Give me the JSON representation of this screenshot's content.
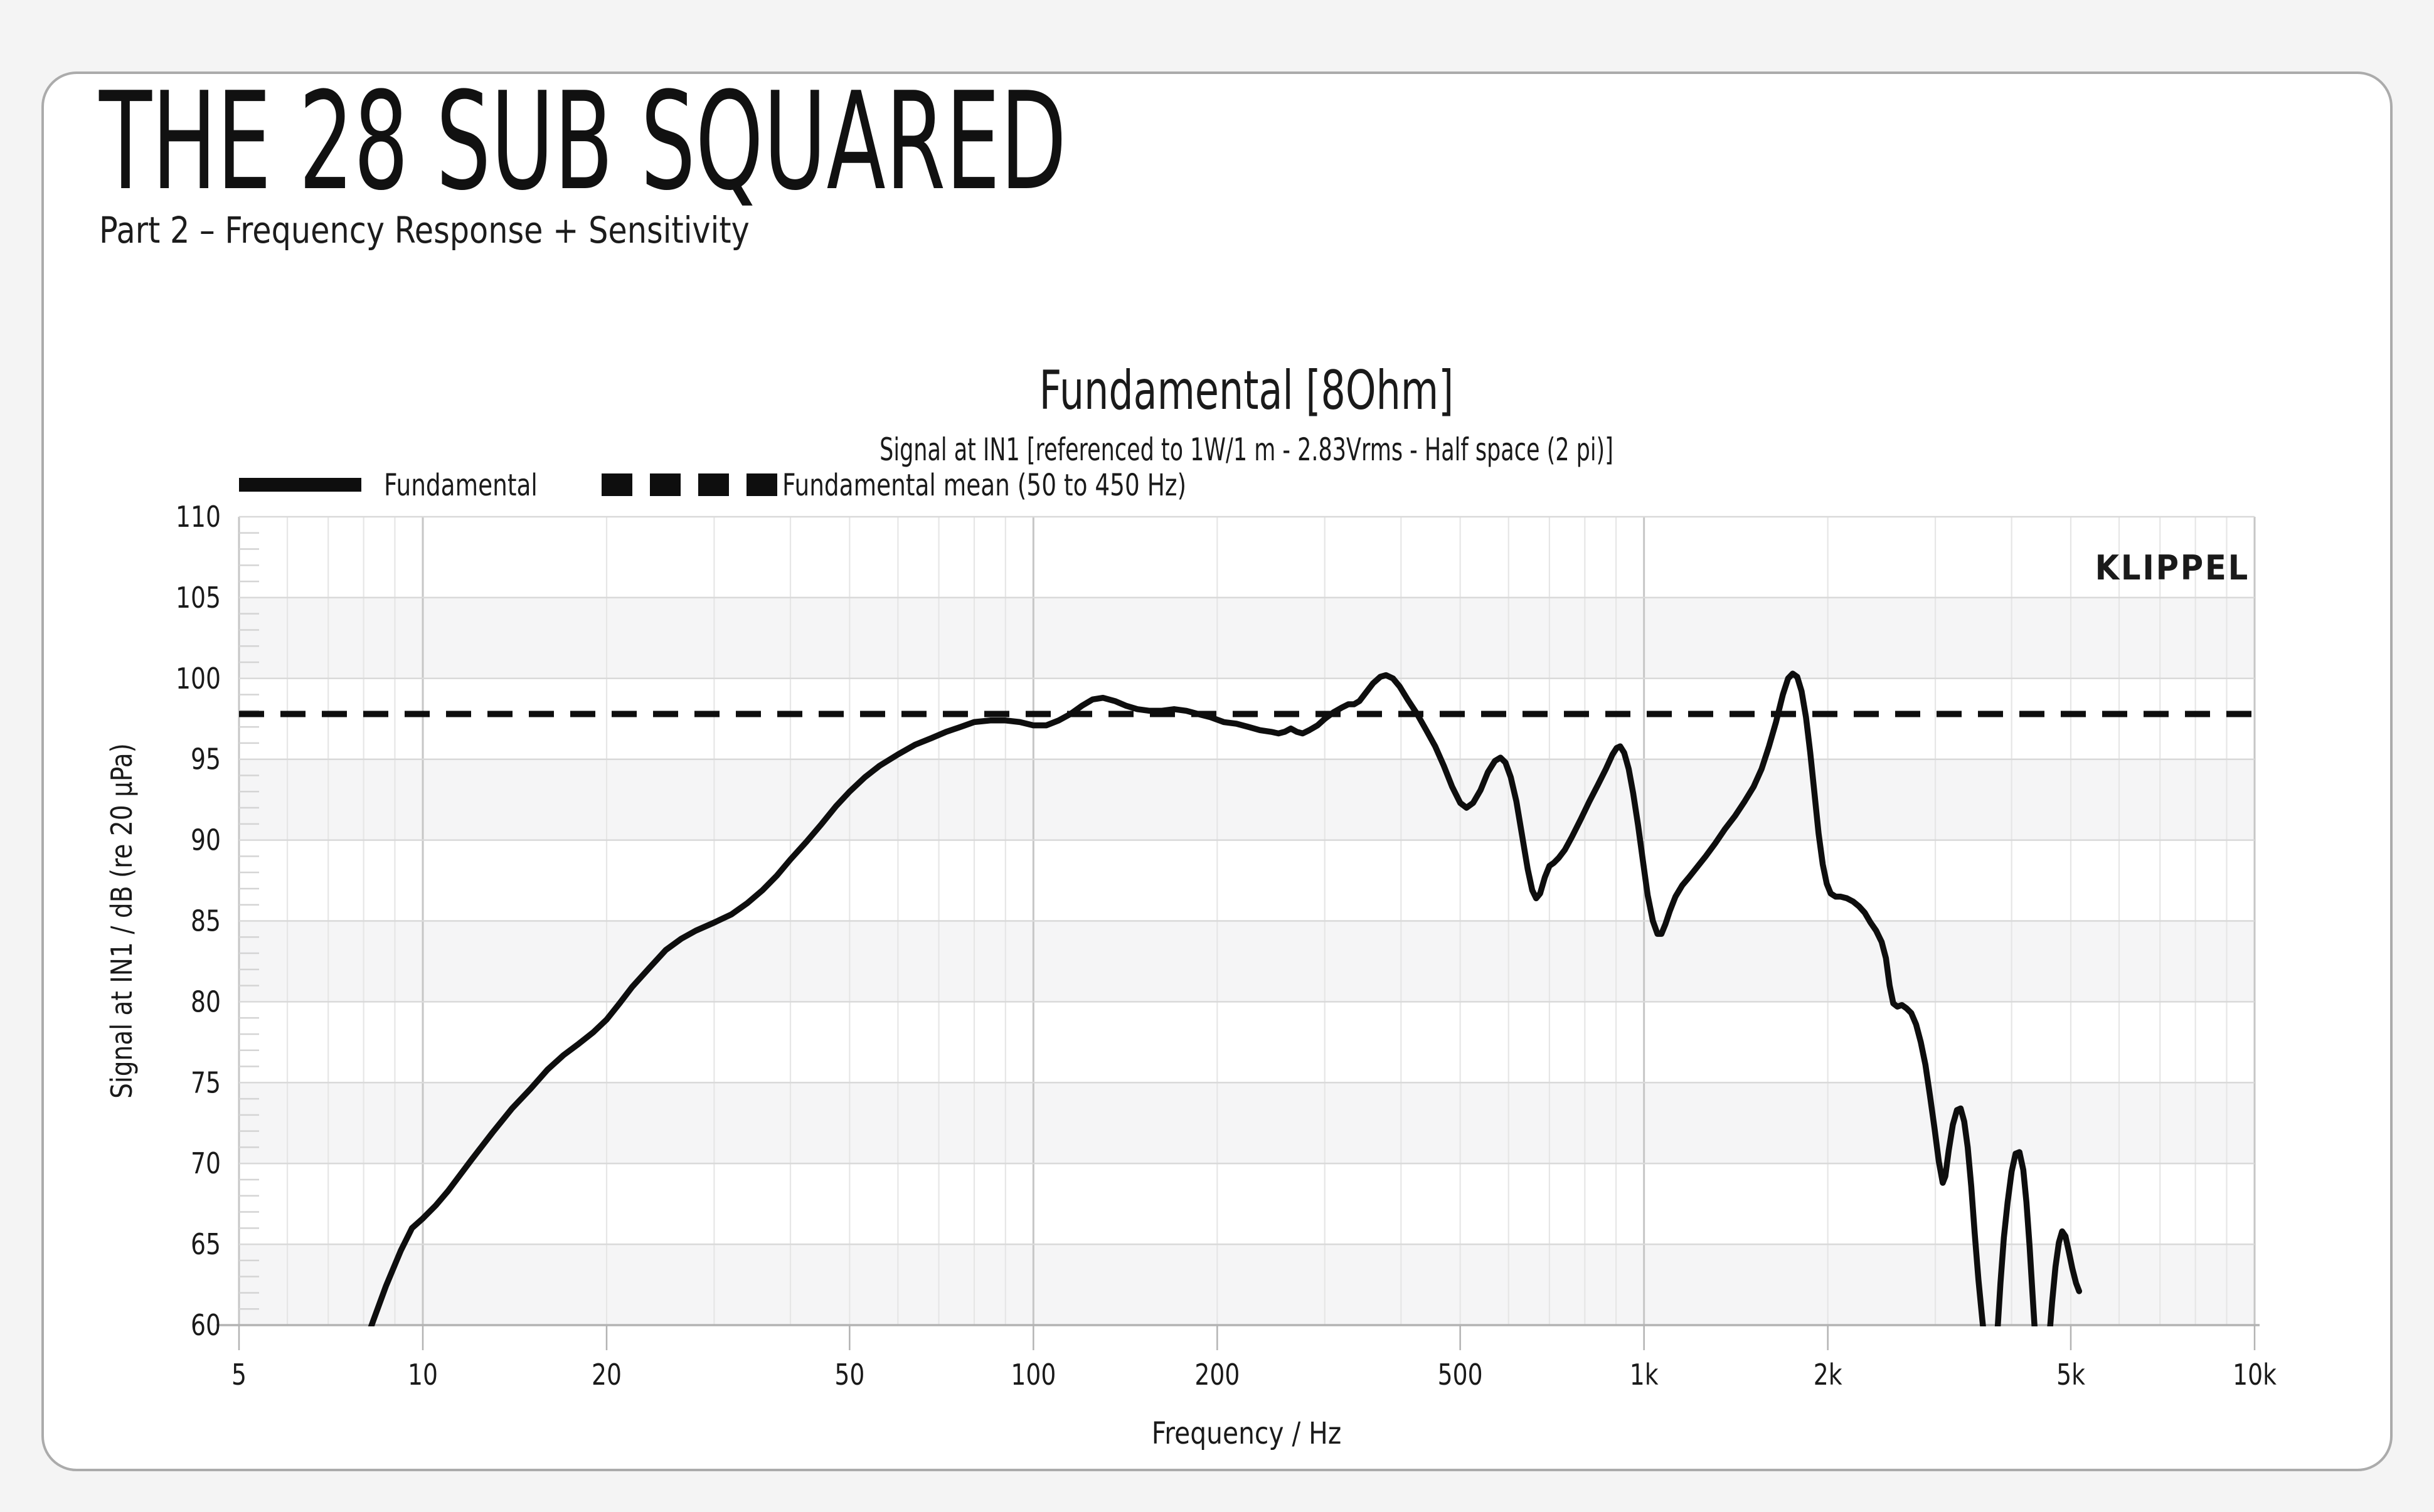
{
  "page": {
    "title": "THE 28 SUB SQUARED",
    "subtitle": "Part 2 – Frequency Response + Sensitivity"
  },
  "chart": {
    "title": "Fundamental [8Ohm]",
    "subtitle": "Signal at IN1 [referenced to 1W/1 m - 2.83Vrms - Half space (2 pi)]",
    "watermark": "KLIPPEL",
    "legend": [
      {
        "label": "Fundamental",
        "style": "solid"
      },
      {
        "label": "Fundamental mean (50 to 450 Hz)",
        "style": "dashed"
      }
    ],
    "colors": {
      "watermark": "#3A7CA8",
      "curve": "#0e0e0e",
      "mean_line": "#0e0e0e",
      "grid_major": "#d9d9d9",
      "grid_minor": "#e6e6e6",
      "grid_decade": "#c6c6c6",
      "band": "#f5f5f6",
      "axis": "#b3b3b3",
      "text": "#1a1a1a"
    }
  },
  "chart_data": {
    "type": "line",
    "title": "Fundamental [8Ohm]",
    "subtitle": "Signal at IN1 [referenced to 1W/1 m - 2.83Vrms - Half space (2 pi)]",
    "xlabel": "Frequency / Hz",
    "ylabel": "Signal at IN1 / dB (re 20 µPa)",
    "x_scale": "log",
    "xlim": [
      5,
      10000
    ],
    "ylim": [
      60,
      110
    ],
    "x_ticks": [
      {
        "v": 5,
        "label": "5"
      },
      {
        "v": 10,
        "label": "10"
      },
      {
        "v": 20,
        "label": "20"
      },
      {
        "v": 50,
        "label": "50"
      },
      {
        "v": 100,
        "label": "100"
      },
      {
        "v": 200,
        "label": "200"
      },
      {
        "v": 500,
        "label": "500"
      },
      {
        "v": 1000,
        "label": "1k"
      },
      {
        "v": 2000,
        "label": "2k"
      },
      {
        "v": 5000,
        "label": "5k"
      },
      {
        "v": 10000,
        "label": "10k"
      }
    ],
    "y_ticks": [
      60,
      65,
      70,
      75,
      80,
      85,
      90,
      95,
      100,
      105,
      110
    ],
    "grid": true,
    "legend_position": "top-left",
    "series": [
      {
        "name": "Fundamental",
        "style": "solid",
        "points": [
          [
            8.0,
            58.6
          ],
          [
            8.3,
            60.3
          ],
          [
            8.7,
            62.4
          ],
          [
            9.2,
            64.6
          ],
          [
            9.6,
            66.0
          ],
          [
            10.0,
            66.6
          ],
          [
            10.5,
            67.4
          ],
          [
            11,
            68.3
          ],
          [
            12,
            70.2
          ],
          [
            13,
            71.9
          ],
          [
            14,
            73.4
          ],
          [
            15,
            74.6
          ],
          [
            16,
            75.8
          ],
          [
            17,
            76.7
          ],
          [
            18,
            77.4
          ],
          [
            19,
            78.1
          ],
          [
            20,
            78.9
          ],
          [
            21,
            79.9
          ],
          [
            22,
            80.9
          ],
          [
            23.5,
            82.1
          ],
          [
            25,
            83.2
          ],
          [
            26.5,
            83.9
          ],
          [
            28,
            84.4
          ],
          [
            30,
            84.9
          ],
          [
            32,
            85.4
          ],
          [
            34,
            86.1
          ],
          [
            36,
            86.9
          ],
          [
            38,
            87.8
          ],
          [
            40,
            88.8
          ],
          [
            42.5,
            89.9
          ],
          [
            45,
            91.0
          ],
          [
            47.5,
            92.1
          ],
          [
            50,
            93.0
          ],
          [
            53,
            93.9
          ],
          [
            56,
            94.6
          ],
          [
            60,
            95.3
          ],
          [
            64,
            95.9
          ],
          [
            68,
            96.3
          ],
          [
            72,
            96.7
          ],
          [
            76,
            97.0
          ],
          [
            80,
            97.3
          ],
          [
            85,
            97.4
          ],
          [
            90,
            97.4
          ],
          [
            95,
            97.3
          ],
          [
            100,
            97.1
          ],
          [
            105,
            97.1
          ],
          [
            110,
            97.4
          ],
          [
            115,
            97.8
          ],
          [
            120,
            98.3
          ],
          [
            125,
            98.7
          ],
          [
            130,
            98.8
          ],
          [
            136,
            98.6
          ],
          [
            142,
            98.3
          ],
          [
            148,
            98.1
          ],
          [
            155,
            98.0
          ],
          [
            162,
            98.0
          ],
          [
            170,
            98.1
          ],
          [
            178,
            98.0
          ],
          [
            186,
            97.8
          ],
          [
            195,
            97.6
          ],
          [
            205,
            97.3
          ],
          [
            215,
            97.2
          ],
          [
            225,
            97.0
          ],
          [
            235,
            96.8
          ],
          [
            245,
            96.7
          ],
          [
            252,
            96.6
          ],
          [
            258,
            96.7
          ],
          [
            264,
            96.9
          ],
          [
            270,
            96.7
          ],
          [
            276,
            96.6
          ],
          [
            283,
            96.8
          ],
          [
            292,
            97.1
          ],
          [
            300,
            97.5
          ],
          [
            310,
            97.9
          ],
          [
            320,
            98.2
          ],
          [
            328,
            98.4
          ],
          [
            335,
            98.4
          ],
          [
            342,
            98.6
          ],
          [
            350,
            99.1
          ],
          [
            360,
            99.7
          ],
          [
            370,
            100.1
          ],
          [
            378,
            100.2
          ],
          [
            388,
            100.0
          ],
          [
            398,
            99.5
          ],
          [
            410,
            98.7
          ],
          [
            425,
            97.8
          ],
          [
            440,
            96.8
          ],
          [
            455,
            95.8
          ],
          [
            470,
            94.6
          ],
          [
            485,
            93.3
          ],
          [
            500,
            92.3
          ],
          [
            512,
            92.0
          ],
          [
            525,
            92.3
          ],
          [
            540,
            93.1
          ],
          [
            555,
            94.2
          ],
          [
            570,
            94.9
          ],
          [
            582,
            95.1
          ],
          [
            593,
            94.8
          ],
          [
            605,
            93.9
          ],
          [
            618,
            92.4
          ],
          [
            632,
            90.2
          ],
          [
            645,
            88.2
          ],
          [
            656,
            86.9
          ],
          [
            666,
            86.4
          ],
          [
            676,
            86.7
          ],
          [
            688,
            87.7
          ],
          [
            700,
            88.4
          ],
          [
            712,
            88.6
          ],
          [
            725,
            88.9
          ],
          [
            742,
            89.4
          ],
          [
            762,
            90.2
          ],
          [
            788,
            91.3
          ],
          [
            814,
            92.4
          ],
          [
            840,
            93.4
          ],
          [
            866,
            94.4
          ],
          [
            888,
            95.3
          ],
          [
            902,
            95.7
          ],
          [
            914,
            95.8
          ],
          [
            928,
            95.4
          ],
          [
            944,
            94.4
          ],
          [
            960,
            92.9
          ],
          [
            978,
            90.9
          ],
          [
            996,
            88.7
          ],
          [
            1014,
            86.6
          ],
          [
            1034,
            85.0
          ],
          [
            1052,
            84.2
          ],
          [
            1068,
            84.2
          ],
          [
            1084,
            84.8
          ],
          [
            1102,
            85.6
          ],
          [
            1126,
            86.5
          ],
          [
            1155,
            87.2
          ],
          [
            1185,
            87.7
          ],
          [
            1220,
            88.3
          ],
          [
            1262,
            89.0
          ],
          [
            1308,
            89.8
          ],
          [
            1358,
            90.7
          ],
          [
            1410,
            91.5
          ],
          [
            1462,
            92.4
          ],
          [
            1512,
            93.3
          ],
          [
            1558,
            94.4
          ],
          [
            1602,
            95.8
          ],
          [
            1645,
            97.3
          ],
          [
            1688,
            99.0
          ],
          [
            1722,
            100.0
          ],
          [
            1752,
            100.3
          ],
          [
            1782,
            100.1
          ],
          [
            1812,
            99.2
          ],
          [
            1842,
            97.6
          ],
          [
            1872,
            95.4
          ],
          [
            1902,
            92.9
          ],
          [
            1932,
            90.4
          ],
          [
            1962,
            88.5
          ],
          [
            1992,
            87.3
          ],
          [
            2022,
            86.7
          ],
          [
            2060,
            86.5
          ],
          [
            2100,
            86.5
          ],
          [
            2150,
            86.4
          ],
          [
            2200,
            86.2
          ],
          [
            2250,
            85.9
          ],
          [
            2300,
            85.5
          ],
          [
            2350,
            84.9
          ],
          [
            2400,
            84.4
          ],
          [
            2450,
            83.7
          ],
          [
            2490,
            82.7
          ],
          [
            2525,
            81.0
          ],
          [
            2560,
            79.9
          ],
          [
            2600,
            79.7
          ],
          [
            2645,
            79.8
          ],
          [
            2690,
            79.6
          ],
          [
            2740,
            79.3
          ],
          [
            2790,
            78.6
          ],
          [
            2840,
            77.5
          ],
          [
            2890,
            76.1
          ],
          [
            2940,
            74.2
          ],
          [
            2990,
            72.2
          ],
          [
            3040,
            70.1
          ],
          [
            3085,
            68.8
          ],
          [
            3115,
            69.2
          ],
          [
            3155,
            70.8
          ],
          [
            3205,
            72.4
          ],
          [
            3255,
            73.3
          ],
          [
            3300,
            73.4
          ],
          [
            3345,
            72.6
          ],
          [
            3390,
            71.0
          ],
          [
            3435,
            68.6
          ],
          [
            3480,
            65.7
          ],
          [
            3530,
            62.8
          ],
          [
            3580,
            60.4
          ],
          [
            3630,
            58.2
          ],
          [
            3680,
            56.6
          ],
          [
            3720,
            56.2
          ],
          [
            3755,
            57.4
          ],
          [
            3795,
            59.8
          ],
          [
            3835,
            62.6
          ],
          [
            3885,
            65.4
          ],
          [
            3940,
            67.6
          ],
          [
            4000,
            69.5
          ],
          [
            4060,
            70.6
          ],
          [
            4120,
            70.7
          ],
          [
            4180,
            69.6
          ],
          [
            4230,
            67.6
          ],
          [
            4280,
            64.9
          ],
          [
            4330,
            61.8
          ],
          [
            4380,
            58.8
          ],
          [
            4430,
            56.4
          ],
          [
            4480,
            55.6
          ],
          [
            4540,
            56.6
          ],
          [
            4600,
            58.8
          ],
          [
            4660,
            61.4
          ],
          [
            4720,
            63.6
          ],
          [
            4780,
            65.1
          ],
          [
            4840,
            65.8
          ],
          [
            4900,
            65.5
          ],
          [
            4960,
            64.6
          ],
          [
            5030,
            63.5
          ],
          [
            5100,
            62.6
          ],
          [
            5160,
            62.1
          ]
        ]
      },
      {
        "name": "Fundamental mean (50 to 450 Hz)",
        "style": "dashed",
        "value": 97.8
      }
    ]
  }
}
